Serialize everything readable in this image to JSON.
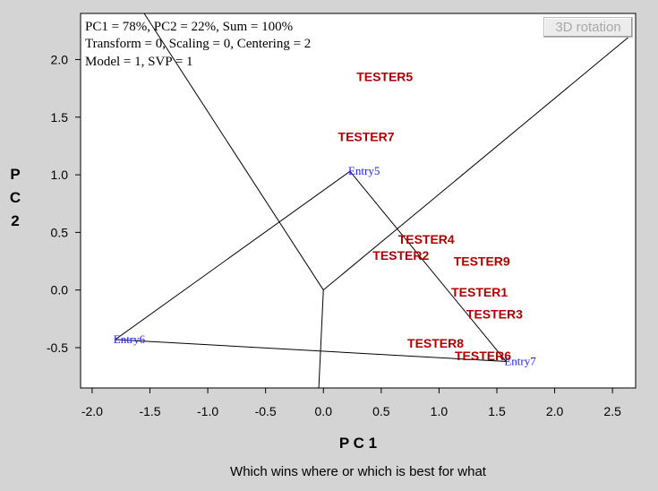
{
  "info": [
    "PC1 = 78%, PC2 = 22%, Sum = 100%",
    "Transform = 0, Scaling = 0, Centering = 2",
    "Model = 1, SVP = 1"
  ],
  "button": {
    "label": "3D rotation"
  },
  "caption": "Which wins where or which is best for what",
  "chart_data": {
    "type": "scatter",
    "title": "",
    "xlabel": "P C 1",
    "ylabel": "P C 2",
    "xlim": [
      -2.1,
      2.7
    ],
    "ylim": [
      -0.85,
      2.4
    ],
    "xticks": [
      "-2.0",
      "-1.5",
      "-1.0",
      "-0.5",
      "0.0",
      "0.5",
      "1.0",
      "1.5",
      "2.0",
      "2.5"
    ],
    "yticks": [
      "-0.5",
      "0.0",
      "0.5",
      "1.0",
      "1.5",
      "2.0"
    ],
    "grid": false,
    "testers": [
      {
        "label": "TESTER5",
        "x": 0.53,
        "y": 1.85
      },
      {
        "label": "TESTER7",
        "x": 0.37,
        "y": 1.33
      },
      {
        "label": "TESTER4",
        "x": 0.89,
        "y": 0.44
      },
      {
        "label": "TESTER2",
        "x": 0.67,
        "y": 0.3
      },
      {
        "label": "TESTER9",
        "x": 1.37,
        "y": 0.25
      },
      {
        "label": "TESTER1",
        "x": 1.35,
        "y": -0.02
      },
      {
        "label": "TESTER3",
        "x": 1.48,
        "y": -0.21
      },
      {
        "label": "TESTER8",
        "x": 0.97,
        "y": -0.46
      },
      {
        "label": "TESTER6",
        "x": 1.38,
        "y": -0.57
      }
    ],
    "entries": [
      {
        "label": "Entry5",
        "x": 0.23,
        "y": 1.03
      },
      {
        "label": "Entry6",
        "x": -1.8,
        "y": -0.43
      },
      {
        "label": "Entry7",
        "x": 1.58,
        "y": -0.62
      }
    ],
    "polygon": [
      [
        0.23,
        1.03
      ],
      [
        1.58,
        -0.62
      ],
      [
        -1.8,
        -0.43
      ],
      [
        0.23,
        1.03
      ]
    ],
    "rays": [
      [
        [
          0.0,
          0.0
        ],
        [
          -1.55,
          2.4
        ]
      ],
      [
        [
          0.0,
          0.0
        ],
        [
          2.67,
          2.22
        ]
      ],
      [
        [
          0.0,
          0.0
        ],
        [
          -0.04,
          -0.85
        ]
      ]
    ]
  }
}
